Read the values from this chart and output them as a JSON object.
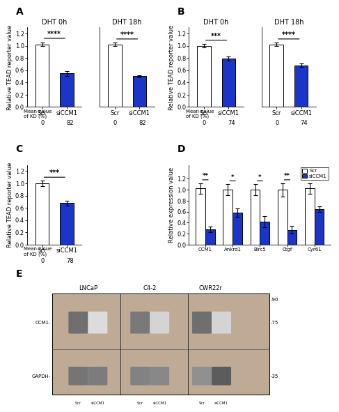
{
  "panel_A": {
    "title": "A",
    "subplots": [
      {
        "subtitle": "DHT 0h",
        "categories": [
          "Scr",
          "siCCM1"
        ],
        "values": [
          1.02,
          0.55
        ],
        "errors": [
          0.03,
          0.04
        ],
        "bar_colors": [
          "white",
          "#1a35c8"
        ],
        "significance": "****",
        "kd_values": [
          "0",
          "82"
        ]
      },
      {
        "subtitle": "DHT 18h",
        "categories": [
          "Scr",
          "siCCM1"
        ],
        "values": [
          1.02,
          0.5
        ],
        "errors": [
          0.03,
          0.02
        ],
        "bar_colors": [
          "white",
          "#1a35c8"
        ],
        "significance": "****",
        "kd_values": [
          "0",
          "82"
        ]
      }
    ],
    "ylabel": "Relative TEAD reporter value",
    "mean_label": "Mean value\nof KD (%)"
  },
  "panel_B": {
    "title": "B",
    "subplots": [
      {
        "subtitle": "DHT 0h",
        "categories": [
          "Scr",
          "siCCM1"
        ],
        "values": [
          1.0,
          0.79
        ],
        "errors": [
          0.03,
          0.03
        ],
        "bar_colors": [
          "white",
          "#1a35c8"
        ],
        "significance": "***",
        "kd_values": [
          "0",
          "74"
        ]
      },
      {
        "subtitle": "DHT 18h",
        "categories": [
          "Scr",
          "siCCM1"
        ],
        "values": [
          1.02,
          0.68
        ],
        "errors": [
          0.03,
          0.03
        ],
        "bar_colors": [
          "white",
          "#1a35c8"
        ],
        "significance": "****",
        "kd_values": [
          "0",
          "74"
        ]
      }
    ],
    "ylabel": "Relative TEAD reporter value",
    "mean_label": "Mean value\nof KD (%)"
  },
  "panel_C": {
    "title": "C",
    "subplots": [
      {
        "subtitle": "",
        "categories": [
          "Scr",
          "siCCM1"
        ],
        "values": [
          1.0,
          0.68
        ],
        "errors": [
          0.04,
          0.04
        ],
        "bar_colors": [
          "white",
          "#1a35c8"
        ],
        "significance": "***",
        "kd_values": [
          "0",
          "78"
        ]
      }
    ],
    "ylabel": "Relative TEAD reporter value",
    "mean_label": "Mean value\nof KD (%)"
  },
  "panel_D": {
    "title": "D",
    "categories": [
      "CCM1",
      "Ankrd1",
      "Birc5",
      "Ctgf",
      "Cyr61"
    ],
    "scr_values": [
      1.02,
      1.0,
      1.0,
      1.0,
      1.02
    ],
    "siccm1_values": [
      0.28,
      0.58,
      0.42,
      0.27,
      0.65
    ],
    "scr_errors": [
      0.1,
      0.1,
      0.1,
      0.12,
      0.1
    ],
    "siccm1_errors": [
      0.05,
      0.08,
      0.1,
      0.07,
      0.05
    ],
    "significance": [
      "**",
      "*",
      "*",
      "**",
      "*"
    ],
    "bar_colors_scr": "white",
    "bar_colors_si": "#1a35c8",
    "ylabel": "Relative expression value",
    "legend_scr": "Scr",
    "legend_si": "siCCM1"
  },
  "panel_E": {
    "title": "E",
    "cell_lines": [
      "LNCaP",
      "C4-2",
      "CWR22r"
    ],
    "size_markers": [
      "-90",
      "-75",
      "-35"
    ],
    "xlabel_samples": [
      "Scr",
      "siCCM1",
      "Scr",
      "siCCM1",
      "Scr",
      "siCCM1"
    ],
    "row_labels": [
      "CCM1-",
      "GAPDH-"
    ],
    "ccm1_intensities": [
      0.75,
      0.18,
      0.7,
      0.22,
      0.75,
      0.22
    ],
    "gapdh_intensities": [
      0.72,
      0.68,
      0.65,
      0.62,
      0.58,
      0.85
    ]
  },
  "figure_bg": "white",
  "bar_edgecolor": "black",
  "bar_linewidth": 0.8,
  "tick_fontsize": 6,
  "label_fontsize": 6,
  "sig_fontsize": 7,
  "ylim_bar": [
    0.0,
    1.3
  ],
  "yticks_bar": [
    0.0,
    0.2,
    0.4,
    0.6,
    0.8,
    1.0,
    1.2
  ]
}
